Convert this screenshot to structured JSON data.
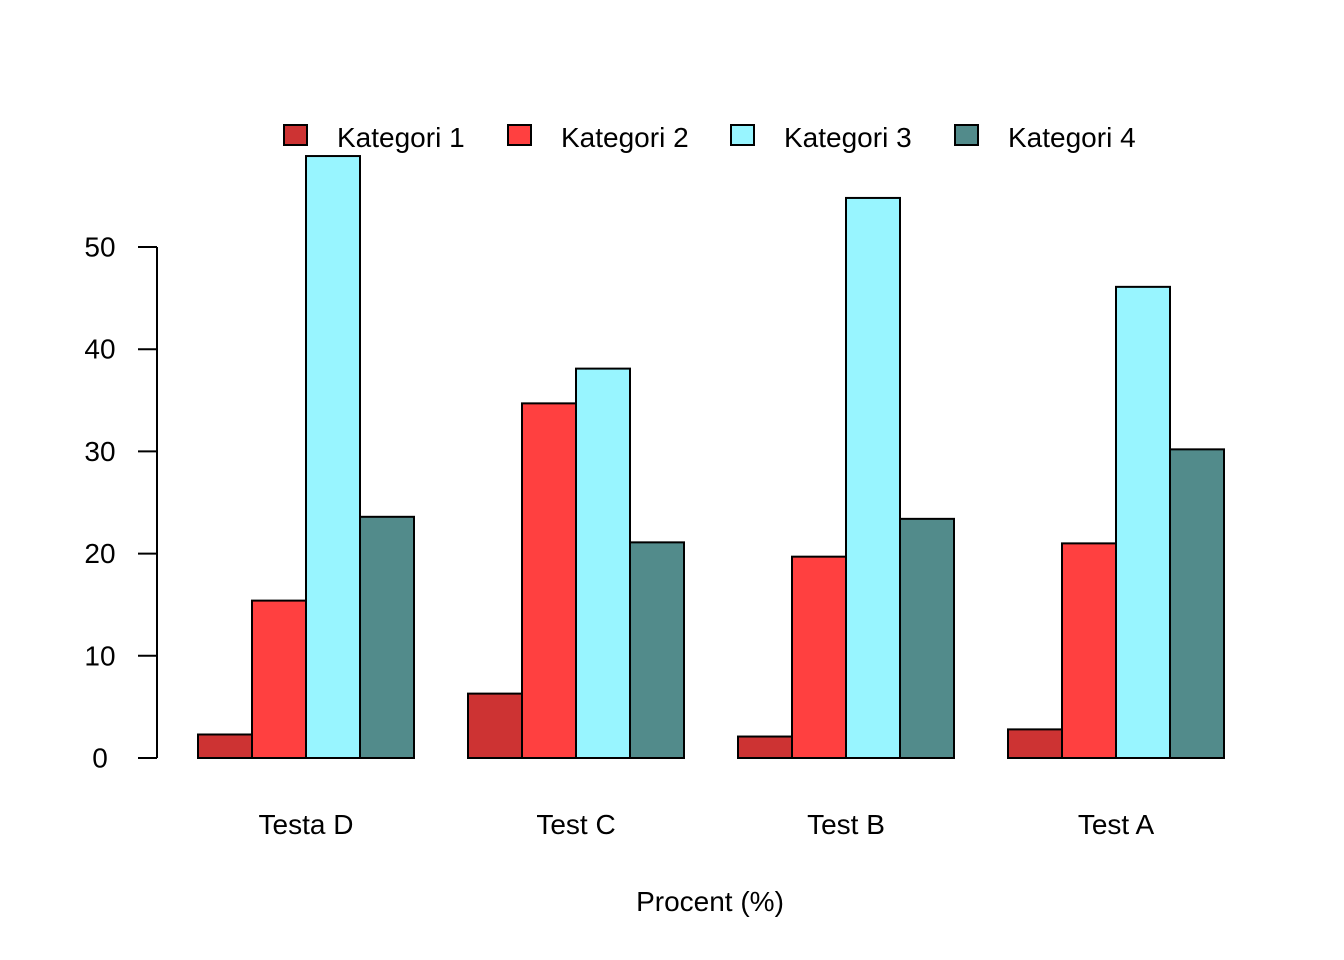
{
  "chart_data": {
    "type": "bar",
    "orientation": "vertical",
    "grouped": true,
    "categories": [
      "Testa D",
      "Test C",
      "Test B",
      "Test A"
    ],
    "series": [
      {
        "name": "Kategori 1",
        "color": "#CD3333",
        "values": [
          2.3,
          6.3,
          2.1,
          2.8
        ]
      },
      {
        "name": "Kategori 2",
        "color": "#FF4040",
        "values": [
          15.4,
          34.7,
          19.7,
          21.0
        ]
      },
      {
        "name": "Kategori 3",
        "color": "#98F5FF",
        "values": [
          58.9,
          38.1,
          54.8,
          46.1
        ]
      },
      {
        "name": "Kategori 4",
        "color": "#528B8B",
        "values": [
          23.6,
          21.1,
          23.4,
          30.2
        ]
      }
    ],
    "title": "",
    "xlabel": "Procent (%)",
    "ylabel": "",
    "ylim": [
      0,
      60
    ],
    "yticks": [
      "0",
      "10",
      "20",
      "30",
      "40",
      "50"
    ],
    "legend": "top",
    "grid": false
  }
}
